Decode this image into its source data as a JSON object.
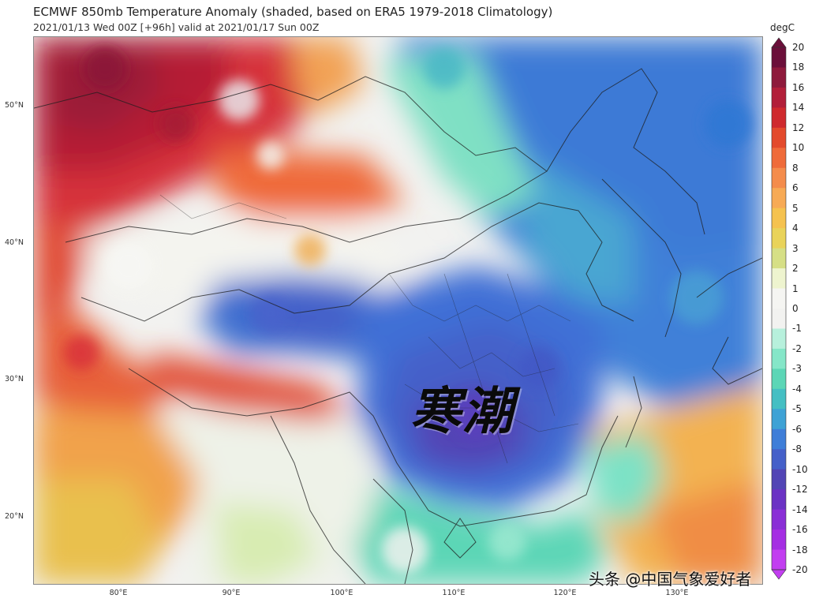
{
  "title": "ECMWF 850mb Temperature Anomaly (shaded, based on ERA5 1979-2018 Climatology)",
  "subtitle": "2021/01/13 Wed 00Z [+96h] valid at 2021/01/17 Sun 00Z",
  "colorbar": {
    "units": "degC",
    "ticks": [
      "20",
      "18",
      "16",
      "14",
      "12",
      "10",
      "8",
      "6",
      "5",
      "4",
      "3",
      "2",
      "1",
      "0",
      "-1",
      "-2",
      "-3",
      "-4",
      "-5",
      "-6",
      "-8",
      "-10",
      "-12",
      "-14",
      "-16",
      "-18",
      "-20"
    ],
    "colors": [
      "#6b0f3a",
      "#8e1a3c",
      "#b21f3a",
      "#cf2a2e",
      "#e34a2c",
      "#ef6b3a",
      "#f48c4c",
      "#f7aa55",
      "#f5c24f",
      "#e9d35a",
      "#d6df86",
      "#eef4cf",
      "#f5f5f2",
      "#f2f2f0",
      "#b7f0dc",
      "#85e6c8",
      "#5cd6b6",
      "#45bfc3",
      "#3ea2d5",
      "#3f7ed8",
      "#4560c9",
      "#5245b5",
      "#6b32c4",
      "#8a2fd6",
      "#a52ee3",
      "#c23ef0"
    ]
  },
  "axes": {
    "lat_labels": [
      "50°N",
      "40°N",
      "30°N",
      "20°N"
    ],
    "lon_labels": [
      "80°E",
      "90°E",
      "100°E",
      "110°E",
      "120°E",
      "130°E"
    ]
  },
  "overlay_label": "寒潮",
  "watermark": "头条 @中国气象爱好者"
}
